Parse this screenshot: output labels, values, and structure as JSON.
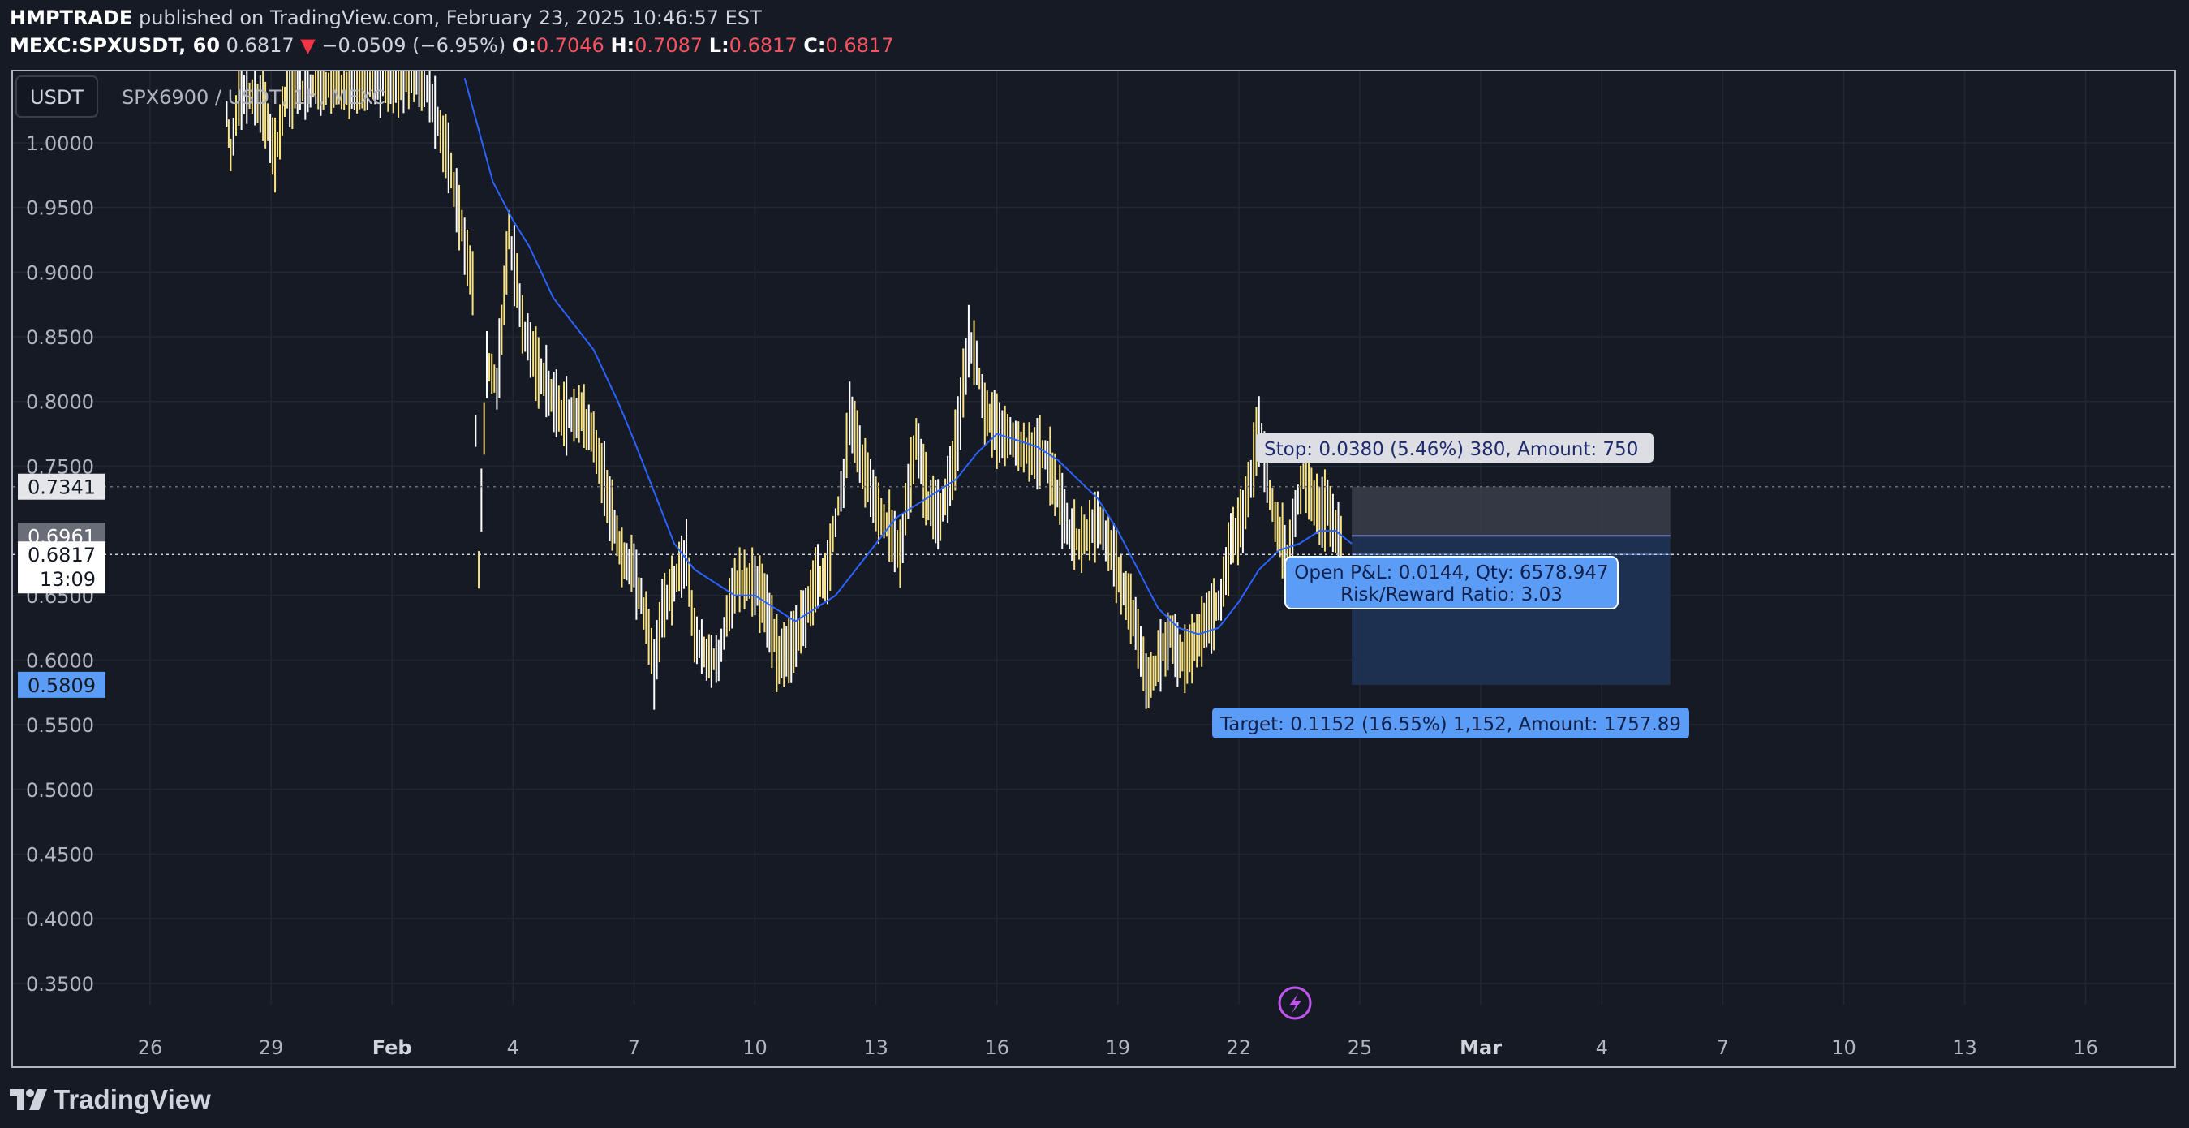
{
  "header": {
    "author": "HMPTRADE",
    "published": "published on TradingView.com, February 23, 2025 10:46:57 EST",
    "symbol": "MEXC:SPXUSDT, 60",
    "last": "0.6817",
    "arrow": "▼",
    "change": "−0.0509 (−6.95%)",
    "o_label": "O:",
    "o_value": "0.7046",
    "h_label": "H:",
    "h_value": "0.7087",
    "l_label": "L:",
    "l_value": "0.6817",
    "c_label": "C:",
    "c_value": "0.6817"
  },
  "legend": {
    "currency_button": "USDT",
    "pair_title": "SPX6900 / USDT, 1h, MEXC"
  },
  "price_tags": {
    "stop_price": "0.7341",
    "entry_price": "0.6961",
    "last_price": "0.6817",
    "countdown": "13:09",
    "target_price": "0.5809"
  },
  "position": {
    "stop_label": "Stop: 0.0380 (5.46%) 380, Amount: 750",
    "pnl_label": "Open P&L: 0.0144, Qty: 6578.947",
    "rr_label": "Risk/Reward Ratio: 3.03",
    "target_label": "Target: 0.1152 (16.55%) 1,152, Amount: 1757.89"
  },
  "footer": {
    "logo_text": "TradingView",
    "logo_icon": "tradingview-logo-icon"
  },
  "colors": {
    "background": "#161a25",
    "grid": "#232734",
    "candle": "#fbe47f",
    "candle_alt": "#ffffff",
    "ma": "#2962ff",
    "stop_zone": "#3a3e4a",
    "target_zone": "#1f3355",
    "tag_blue": "#5b9cf6",
    "flash": "#c255f0"
  },
  "chart_data": {
    "type": "candlestick",
    "title": "SPX6900 / USDT, 1h, MEXC",
    "ylim": [
      0.3,
      1.05
    ],
    "y_ticks": [
      1.0,
      0.95,
      0.9,
      0.85,
      0.8,
      0.75,
      0.65,
      0.6,
      0.55,
      0.5,
      0.45,
      0.4,
      0.35
    ],
    "y_tick_labels": [
      "1.0000",
      "0.9500",
      "0.9000",
      "0.8500",
      "0.8000",
      "0.7500",
      "0.6500",
      "0.6000",
      "0.5500",
      "0.5000",
      "0.4500",
      "0.4000",
      "0.3500"
    ],
    "x_ticks": [
      "26",
      "29",
      "Feb",
      "4",
      "7",
      "10",
      "13",
      "16",
      "19",
      "22",
      "25",
      "Mar",
      "4",
      "7",
      "10",
      "13",
      "16"
    ],
    "x_tick_days": [
      -6,
      -3,
      0,
      3,
      6,
      9,
      12,
      15,
      18,
      21,
      24,
      27,
      30,
      33,
      36,
      39,
      42
    ],
    "x_range_days": [
      -9.4,
      44.2
    ],
    "price_path": [
      [
        -4.1,
        1.02
      ],
      [
        -4.0,
        0.99
      ],
      [
        -3.8,
        1.04
      ],
      [
        -3.2,
        1.03
      ],
      [
        -2.9,
        0.99
      ],
      [
        -2.6,
        1.04
      ],
      [
        0.8,
        1.05
      ],
      [
        1.4,
        0.99
      ],
      [
        1.8,
        0.92
      ],
      [
        2.0,
        0.89
      ],
      [
        2.15,
        0.67
      ],
      [
        2.35,
        0.83
      ],
      [
        2.6,
        0.81
      ],
      [
        2.9,
        0.93
      ],
      [
        3.3,
        0.85
      ],
      [
        3.7,
        0.82
      ],
      [
        4.2,
        0.79
      ],
      [
        4.7,
        0.79
      ],
      [
        5.0,
        0.77
      ],
      [
        5.4,
        0.72
      ],
      [
        5.7,
        0.68
      ],
      [
        6.0,
        0.67
      ],
      [
        6.3,
        0.63
      ],
      [
        6.5,
        0.59
      ],
      [
        6.7,
        0.64
      ],
      [
        7.0,
        0.66
      ],
      [
        7.3,
        0.68
      ],
      [
        7.5,
        0.62
      ],
      [
        7.8,
        0.6
      ],
      [
        8.1,
        0.6
      ],
      [
        8.5,
        0.66
      ],
      [
        8.8,
        0.66
      ],
      [
        9.0,
        0.66
      ],
      [
        9.3,
        0.64
      ],
      [
        9.6,
        0.6
      ],
      [
        9.9,
        0.61
      ],
      [
        10.2,
        0.63
      ],
      [
        10.5,
        0.66
      ],
      [
        10.8,
        0.67
      ],
      [
        11.0,
        0.71
      ],
      [
        11.2,
        0.74
      ],
      [
        11.35,
        0.79
      ],
      [
        11.6,
        0.76
      ],
      [
        12.0,
        0.72
      ],
      [
        12.4,
        0.7
      ],
      [
        12.6,
        0.68
      ],
      [
        12.8,
        0.73
      ],
      [
        13.0,
        0.77
      ],
      [
        13.3,
        0.72
      ],
      [
        13.6,
        0.71
      ],
      [
        13.9,
        0.75
      ],
      [
        14.1,
        0.79
      ],
      [
        14.3,
        0.85
      ],
      [
        14.5,
        0.83
      ],
      [
        14.7,
        0.79
      ],
      [
        15.0,
        0.78
      ],
      [
        15.4,
        0.77
      ],
      [
        15.8,
        0.76
      ],
      [
        16.2,
        0.76
      ],
      [
        16.5,
        0.73
      ],
      [
        16.8,
        0.7
      ],
      [
        17.1,
        0.69
      ],
      [
        17.5,
        0.71
      ],
      [
        17.9,
        0.68
      ],
      [
        18.2,
        0.65
      ],
      [
        18.5,
        0.62
      ],
      [
        18.7,
        0.58
      ],
      [
        19.0,
        0.6
      ],
      [
        19.3,
        0.62
      ],
      [
        19.6,
        0.6
      ],
      [
        19.9,
        0.61
      ],
      [
        20.2,
        0.63
      ],
      [
        20.5,
        0.64
      ],
      [
        20.8,
        0.69
      ],
      [
        21.1,
        0.71
      ],
      [
        21.3,
        0.74
      ],
      [
        21.5,
        0.78
      ],
      [
        21.7,
        0.74
      ],
      [
        21.9,
        0.71
      ],
      [
        22.2,
        0.68
      ],
      [
        22.4,
        0.71
      ],
      [
        22.6,
        0.74
      ],
      [
        22.8,
        0.73
      ],
      [
        23.0,
        0.71
      ],
      [
        23.2,
        0.72
      ],
      [
        23.4,
        0.7
      ],
      [
        23.6,
        0.68
      ]
    ],
    "moving_average": [
      [
        1.8,
        1.05
      ],
      [
        2.5,
        0.97
      ],
      [
        3.0,
        0.94
      ],
      [
        3.4,
        0.92
      ],
      [
        4.0,
        0.88
      ],
      [
        5.0,
        0.84
      ],
      [
        5.6,
        0.8
      ],
      [
        6.0,
        0.77
      ],
      [
        6.5,
        0.73
      ],
      [
        7.0,
        0.69
      ],
      [
        7.5,
        0.67
      ],
      [
        8.0,
        0.66
      ],
      [
        8.5,
        0.65
      ],
      [
        9.0,
        0.65
      ],
      [
        9.5,
        0.64
      ],
      [
        10.0,
        0.63
      ],
      [
        10.5,
        0.64
      ],
      [
        11.0,
        0.65
      ],
      [
        11.5,
        0.67
      ],
      [
        12.0,
        0.69
      ],
      [
        12.5,
        0.71
      ],
      [
        13.0,
        0.72
      ],
      [
        13.5,
        0.73
      ],
      [
        14.0,
        0.74
      ],
      [
        14.5,
        0.76
      ],
      [
        15.0,
        0.775
      ],
      [
        15.5,
        0.77
      ],
      [
        16.0,
        0.765
      ],
      [
        16.5,
        0.755
      ],
      [
        17.0,
        0.74
      ],
      [
        17.5,
        0.725
      ],
      [
        18.0,
        0.7
      ],
      [
        18.5,
        0.67
      ],
      [
        19.0,
        0.64
      ],
      [
        19.5,
        0.625
      ],
      [
        20.0,
        0.62
      ],
      [
        20.5,
        0.625
      ],
      [
        21.0,
        0.645
      ],
      [
        21.5,
        0.67
      ],
      [
        22.0,
        0.685
      ],
      [
        22.5,
        0.69
      ],
      [
        23.0,
        0.7
      ],
      [
        23.4,
        0.7
      ],
      [
        23.8,
        0.69
      ]
    ],
    "position": {
      "stop": 0.7341,
      "entry": 0.6961,
      "target": 0.5809,
      "last": 0.6817,
      "start_day": 23.8,
      "end_day": 31.7
    }
  }
}
